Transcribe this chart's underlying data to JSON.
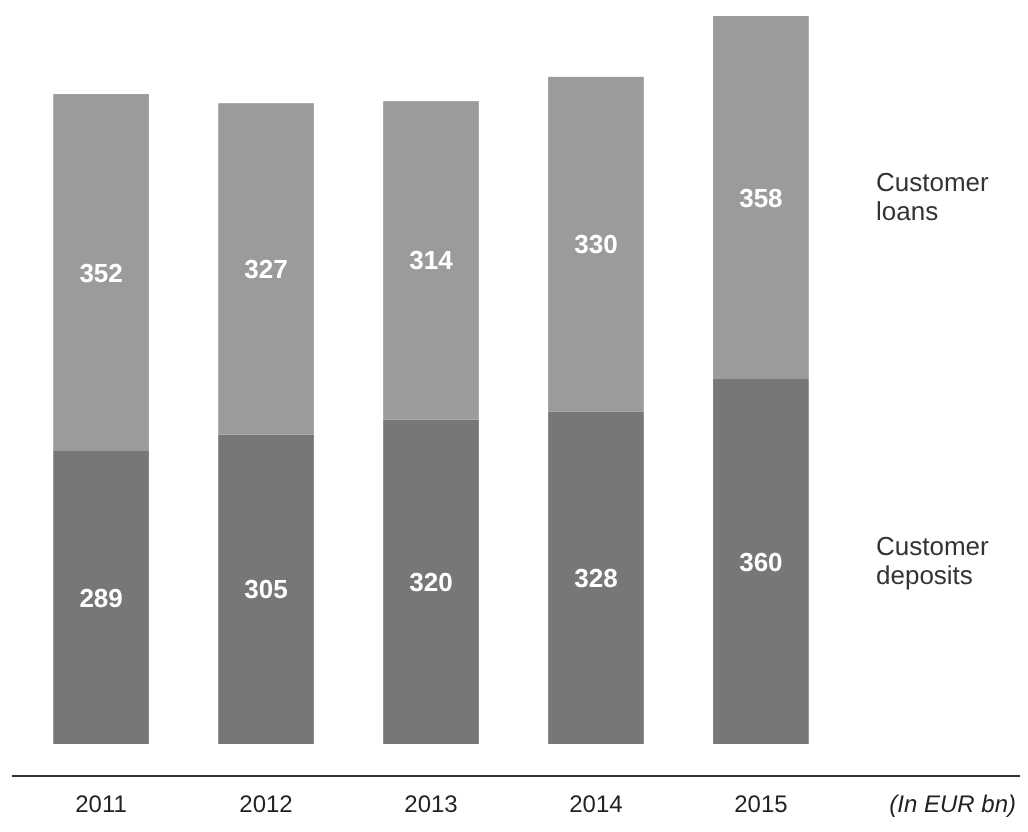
{
  "chart_data": {
    "type": "bar",
    "stacked": true,
    "data_labels": true,
    "categories": [
      "2011",
      "2012",
      "2013",
      "2014",
      "2015"
    ],
    "series": [
      {
        "name": "Customer deposits",
        "color": "#77777a",
        "values": [
          289,
          305,
          320,
          328,
          360
        ]
      },
      {
        "name": "Customer loans",
        "color": "#9b9b9d",
        "values": [
          352,
          327,
          314,
          330,
          358
        ]
      }
    ],
    "annotations": [
      "(In EUR bn)"
    ]
  }
}
